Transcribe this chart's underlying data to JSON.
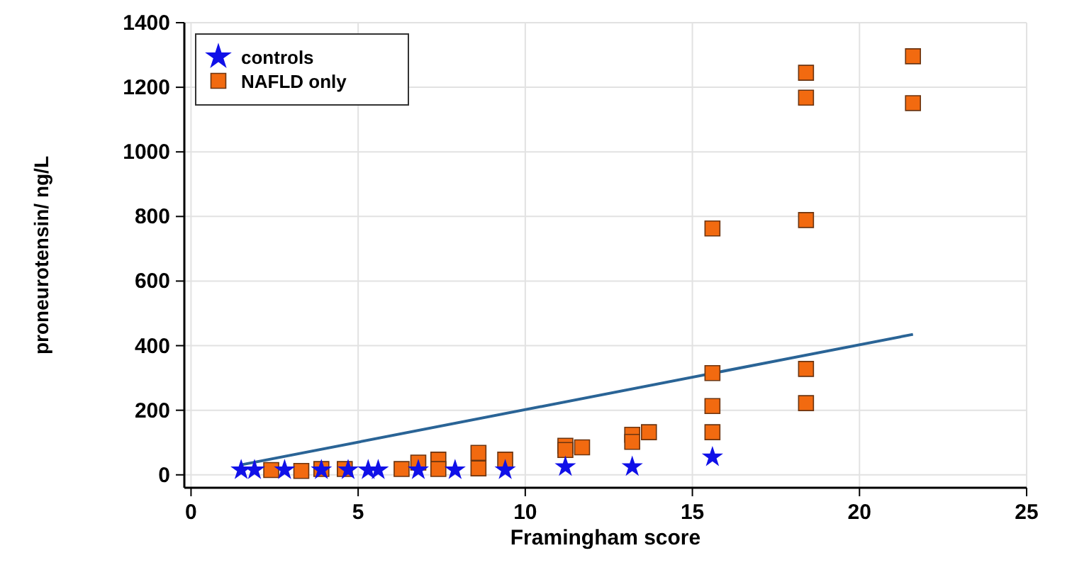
{
  "chart_data": {
    "type": "scatter",
    "xlabel": "Framingham score",
    "ylabel": "proneurotensin/ ng/L",
    "xlim": [
      -0.2,
      25
    ],
    "xticks": [
      0,
      5,
      10,
      15,
      20,
      25
    ],
    "ylim": [
      -40,
      1400
    ],
    "yticks": [
      0,
      200,
      400,
      600,
      800,
      1000,
      1200,
      1400
    ],
    "grid": true,
    "legend": "top left",
    "series": [
      {
        "name": "controls",
        "color": "#1010e8",
        "marker": "star",
        "x": [
          1.5,
          1.9,
          2.8,
          3.9,
          4.7,
          5.3,
          5.6,
          6.8,
          7.9,
          9.4,
          11.2,
          13.2,
          15.6
        ],
        "values": [
          15,
          15,
          15,
          15,
          15,
          15,
          15,
          15,
          15,
          15,
          25,
          25,
          55
        ]
      },
      {
        "name": "NAFLD only",
        "color": "#f26a10",
        "marker": "square",
        "x": [
          2.4,
          3.3,
          3.9,
          4.6,
          6.3,
          6.8,
          7.4,
          7.4,
          8.6,
          8.6,
          9.4,
          11.2,
          11.2,
          11.7,
          13.2,
          13.2,
          13.7,
          15.6,
          15.6,
          15.6,
          15.6,
          18.4,
          18.4,
          18.4,
          18.4,
          18.4,
          21.6,
          21.6
        ],
        "values": [
          15,
          12,
          18,
          18,
          18,
          38,
          47,
          18,
          68,
          20,
          47,
          90,
          77,
          85,
          124,
          102,
          132,
          763,
          315,
          213,
          132,
          1245,
          1168,
          789,
          328,
          222,
          1296,
          1151
        ]
      },
      {
        "type": "line",
        "color": "#2a6496",
        "marker": "none",
        "x": [
          1.5,
          21.6
        ],
        "values": [
          31,
          435
        ]
      }
    ]
  }
}
